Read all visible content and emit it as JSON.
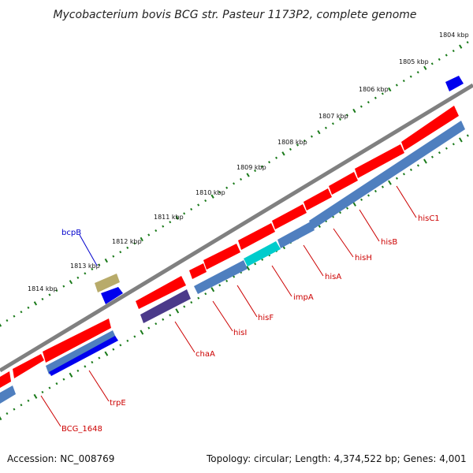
{
  "title": "Mycobacterium bovis BCG str. Pasteur 1173P2, complete genome",
  "accession_text": "Accession: NC_008769",
  "summary_text": "Topology: circular; Length: 4,374,522 bp; Genes: 4,001",
  "colors": {
    "backbone": "#808080",
    "forward_cds": "#ff0000",
    "reverse_cds": "#4f7fbf",
    "highlight_cds": "#00cccc",
    "dark_cds": "#4b3a8a",
    "blue_cds": "#0000ee",
    "olive_feature": "#b8ab6a",
    "tick_major": "#1a7a1a",
    "tick_minor": "#1a7a1a",
    "label_red": "#cc0000",
    "label_blue": "#0000cc"
  },
  "ticks": [
    "1804 kbp",
    "1805 kbp",
    "1806 kbp",
    "1807 kbp",
    "1808 kbp",
    "1809 kbp",
    "1810 kbp",
    "1811 kbp",
    "1812 kbp",
    "1813 kbp",
    "1814 kbp"
  ],
  "gene_labels": {
    "bcpB": "bcpB",
    "hisC1": "hisC1",
    "hisB": "hisB",
    "hisH": "hisH",
    "hisA": "hisA",
    "impA": "impA",
    "hisF": "hisF",
    "hisI": "hisI",
    "chaA": "chaA",
    "trpE": "trpE",
    "BCG_1648": "BCG_1648"
  }
}
